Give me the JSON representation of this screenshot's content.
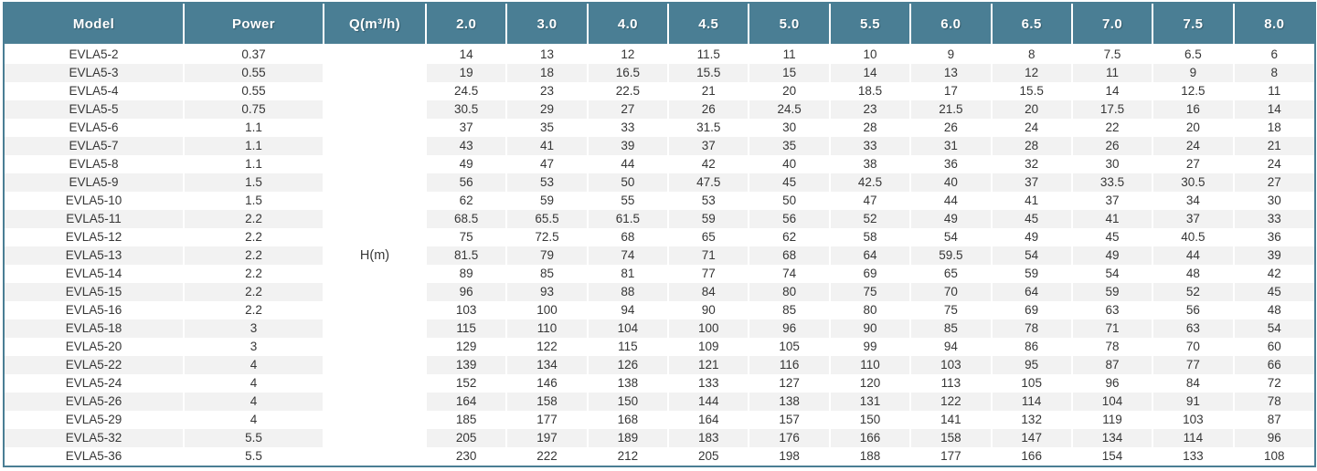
{
  "style": {
    "header_bg": "#4A7E94",
    "header_text_color": "#FFFFFF",
    "border_color": "#4A7E94",
    "stripe_color": "#F2F2F2",
    "row_bg": "#FFFFFF",
    "text_color": "#363636"
  },
  "chart_data": {
    "type": "table",
    "columns": [
      "Model",
      "Power",
      "Q(m³/h)",
      "2.0",
      "3.0",
      "4.0",
      "4.5",
      "5.0",
      "5.5",
      "6.0",
      "6.5",
      "7.0",
      "7.5",
      "8.0"
    ],
    "merged_cell_label": "H(m)",
    "rows": [
      [
        "EVLA5-2",
        "0.37",
        "14",
        "13",
        "12",
        "11.5",
        "11",
        "10",
        "9",
        "8",
        "7.5",
        "6.5",
        "6"
      ],
      [
        "EVLA5-3",
        "0.55",
        "19",
        "18",
        "16.5",
        "15.5",
        "15",
        "14",
        "13",
        "12",
        "11",
        "9",
        "8"
      ],
      [
        "EVLA5-4",
        "0.55",
        "24.5",
        "23",
        "22.5",
        "21",
        "20",
        "18.5",
        "17",
        "15.5",
        "14",
        "12.5",
        "11"
      ],
      [
        "EVLA5-5",
        "0.75",
        "30.5",
        "29",
        "27",
        "26",
        "24.5",
        "23",
        "21.5",
        "20",
        "17.5",
        "16",
        "14"
      ],
      [
        "EVLA5-6",
        "1.1",
        "37",
        "35",
        "33",
        "31.5",
        "30",
        "28",
        "26",
        "24",
        "22",
        "20",
        "18"
      ],
      [
        "EVLA5-7",
        "1.1",
        "43",
        "41",
        "39",
        "37",
        "35",
        "33",
        "31",
        "28",
        "26",
        "24",
        "21"
      ],
      [
        "EVLA5-8",
        "1.1",
        "49",
        "47",
        "44",
        "42",
        "40",
        "38",
        "36",
        "32",
        "30",
        "27",
        "24"
      ],
      [
        "EVLA5-9",
        "1.5",
        "56",
        "53",
        "50",
        "47.5",
        "45",
        "42.5",
        "40",
        "37",
        "33.5",
        "30.5",
        "27"
      ],
      [
        "EVLA5-10",
        "1.5",
        "62",
        "59",
        "55",
        "53",
        "50",
        "47",
        "44",
        "41",
        "37",
        "34",
        "30"
      ],
      [
        "EVLA5-11",
        "2.2",
        "68.5",
        "65.5",
        "61.5",
        "59",
        "56",
        "52",
        "49",
        "45",
        "41",
        "37",
        "33"
      ],
      [
        "EVLA5-12",
        "2.2",
        "75",
        "72.5",
        "68",
        "65",
        "62",
        "58",
        "54",
        "49",
        "45",
        "40.5",
        "36"
      ],
      [
        "EVLA5-13",
        "2.2",
        "81.5",
        "79",
        "74",
        "71",
        "68",
        "64",
        "59.5",
        "54",
        "49",
        "44",
        "39"
      ],
      [
        "EVLA5-14",
        "2.2",
        "89",
        "85",
        "81",
        "77",
        "74",
        "69",
        "65",
        "59",
        "54",
        "48",
        "42"
      ],
      [
        "EVLA5-15",
        "2.2",
        "96",
        "93",
        "88",
        "84",
        "80",
        "75",
        "70",
        "64",
        "59",
        "52",
        "45"
      ],
      [
        "EVLA5-16",
        "2.2",
        "103",
        "100",
        "94",
        "90",
        "85",
        "80",
        "75",
        "69",
        "63",
        "56",
        "48"
      ],
      [
        "EVLA5-18",
        "3",
        "115",
        "110",
        "104",
        "100",
        "96",
        "90",
        "85",
        "78",
        "71",
        "63",
        "54"
      ],
      [
        "EVLA5-20",
        "3",
        "129",
        "122",
        "115",
        "109",
        "105",
        "99",
        "94",
        "86",
        "78",
        "70",
        "60"
      ],
      [
        "EVLA5-22",
        "4",
        "139",
        "134",
        "126",
        "121",
        "116",
        "110",
        "103",
        "95",
        "87",
        "77",
        "66"
      ],
      [
        "EVLA5-24",
        "4",
        "152",
        "146",
        "138",
        "133",
        "127",
        "120",
        "113",
        "105",
        "96",
        "84",
        "72"
      ],
      [
        "EVLA5-26",
        "4",
        "164",
        "158",
        "150",
        "144",
        "138",
        "131",
        "122",
        "114",
        "104",
        "91",
        "78"
      ],
      [
        "EVLA5-29",
        "4",
        "185",
        "177",
        "168",
        "164",
        "157",
        "150",
        "141",
        "132",
        "119",
        "103",
        "87"
      ],
      [
        "EVLA5-32",
        "5.5",
        "205",
        "197",
        "189",
        "183",
        "176",
        "166",
        "158",
        "147",
        "134",
        "114",
        "96"
      ],
      [
        "EVLA5-36",
        "5.5",
        "230",
        "222",
        "212",
        "205",
        "198",
        "188",
        "177",
        "166",
        "154",
        "133",
        "108"
      ]
    ]
  }
}
